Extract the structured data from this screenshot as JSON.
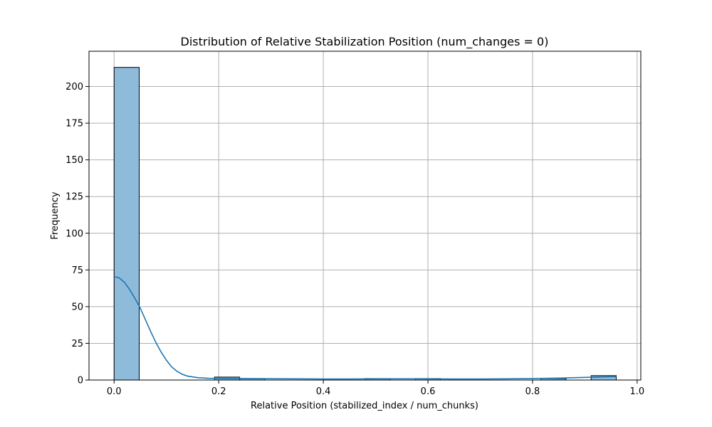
{
  "chart_data": {
    "type": "bar",
    "title": "Distribution of Relative Stabilization Position (num_changes = 0)",
    "xlabel": "Relative Position (stabilized_index / num_chunks)",
    "ylabel": "Frequency",
    "xlim": [
      -0.048,
      1.007
    ],
    "ylim": [
      0,
      224
    ],
    "grid": true,
    "xticks": [
      0.0,
      0.2,
      0.4,
      0.6,
      0.8,
      1.0
    ],
    "xtick_labels": [
      "0.0",
      "0.2",
      "0.4",
      "0.6",
      "0.8",
      "1.0"
    ],
    "yticks": [
      0,
      25,
      50,
      75,
      100,
      125,
      150,
      175,
      200
    ],
    "ytick_labels": [
      "0",
      "25",
      "50",
      "75",
      "100",
      "125",
      "150",
      "175",
      "200"
    ],
    "bin_edges": [
      0.0,
      0.048,
      0.096,
      0.144,
      0.192,
      0.24,
      0.288,
      0.336,
      0.384,
      0.432,
      0.48,
      0.528,
      0.576,
      0.624,
      0.672,
      0.72,
      0.768,
      0.816,
      0.864,
      0.912,
      0.96
    ],
    "counts": [
      213,
      0,
      0,
      0,
      2,
      1,
      0,
      0,
      0,
      0,
      1,
      0,
      1,
      0,
      0,
      0,
      0,
      1,
      0,
      3
    ],
    "kde": {
      "x": [
        0.0,
        0.01,
        0.02,
        0.03,
        0.04,
        0.05,
        0.06,
        0.07,
        0.08,
        0.09,
        0.1,
        0.11,
        0.12,
        0.13,
        0.14,
        0.16,
        0.18,
        0.2,
        0.25,
        0.3,
        0.35,
        0.4,
        0.45,
        0.5,
        0.55,
        0.6,
        0.65,
        0.7,
        0.75,
        0.8,
        0.85,
        0.9,
        0.93,
        0.96
      ],
      "y": [
        70.5,
        69.5,
        66.5,
        61.5,
        55.5,
        49.0,
        41.0,
        33.0,
        25.5,
        19.0,
        13.5,
        9.0,
        6.0,
        4.0,
        2.7,
        1.6,
        1.2,
        1.1,
        1.0,
        0.9,
        0.8,
        0.7,
        0.7,
        0.8,
        0.8,
        0.8,
        0.7,
        0.7,
        0.8,
        1.0,
        1.3,
        1.8,
        2.1,
        2.3
      ]
    },
    "colors": {
      "bar_fill": "#8fbbdb",
      "bar_edge": "#000000",
      "kde_line": "#1f77b4",
      "grid": "#b0b0b0"
    }
  }
}
